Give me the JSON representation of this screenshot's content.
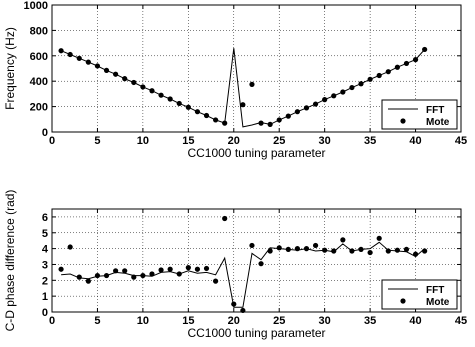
{
  "chart_data": [
    {
      "type": "line",
      "xlabel": "CC1000 tuning parameter",
      "ylabel": "Frequency (Hz)",
      "xlim": [
        0,
        45
      ],
      "ylim": [
        0,
        1000
      ],
      "xticks": [
        0,
        5,
        10,
        15,
        20,
        25,
        30,
        35,
        40,
        45
      ],
      "yticks": [
        0,
        200,
        400,
        600,
        800,
        1000
      ],
      "grid": "dotted",
      "legend_position": "bottom-right",
      "series": [
        {
          "name": "FFT",
          "style": "line",
          "x": [
            1,
            2,
            3,
            4,
            5,
            6,
            7,
            8,
            9,
            10,
            11,
            12,
            13,
            14,
            15,
            16,
            17,
            18,
            19,
            20,
            21,
            22,
            23,
            24,
            25,
            26,
            27,
            28,
            29,
            30,
            31,
            32,
            33,
            34,
            35,
            36,
            37,
            38,
            39,
            40,
            41
          ],
          "y": [
            640,
            610,
            580,
            550,
            520,
            485,
            455,
            420,
            390,
            355,
            325,
            290,
            260,
            225,
            195,
            160,
            130,
            95,
            70,
            660,
            40,
            55,
            75,
            60,
            95,
            125,
            160,
            190,
            220,
            255,
            285,
            315,
            350,
            380,
            415,
            445,
            475,
            510,
            540,
            570,
            650
          ]
        },
        {
          "name": "Mote",
          "style": "markers",
          "x": [
            1,
            2,
            3,
            4,
            5,
            6,
            7,
            8,
            9,
            10,
            11,
            12,
            13,
            14,
            15,
            16,
            17,
            18,
            19,
            21,
            22,
            23,
            24,
            25,
            26,
            27,
            28,
            29,
            30,
            31,
            32,
            33,
            34,
            35,
            36,
            37,
            38,
            39,
            40,
            41
          ],
          "y": [
            640,
            610,
            580,
            550,
            520,
            485,
            455,
            420,
            390,
            355,
            325,
            290,
            260,
            225,
            195,
            160,
            130,
            95,
            70,
            215,
            375,
            70,
            60,
            95,
            125,
            160,
            190,
            220,
            255,
            285,
            315,
            350,
            380,
            415,
            445,
            475,
            510,
            540,
            570,
            650
          ]
        }
      ]
    },
    {
      "type": "line",
      "xlabel": "CC1000 tuning parameter",
      "ylabel": "C-D phase difference (rad)",
      "xlim": [
        0,
        45
      ],
      "ylim": [
        0,
        6.5
      ],
      "xticks": [
        0,
        5,
        10,
        15,
        20,
        25,
        30,
        35,
        40,
        45
      ],
      "yticks": [
        0,
        1,
        2,
        3,
        4,
        5,
        6
      ],
      "grid": "dotted",
      "legend_position": "bottom-right",
      "series": [
        {
          "name": "FFT",
          "style": "line",
          "x": [
            1,
            2,
            3,
            4,
            5,
            6,
            7,
            8,
            9,
            10,
            11,
            12,
            13,
            14,
            15,
            16,
            17,
            18,
            19,
            20,
            21,
            22,
            23,
            24,
            25,
            26,
            27,
            28,
            29,
            30,
            31,
            32,
            33,
            34,
            35,
            36,
            37,
            38,
            39,
            40,
            41
          ],
          "y": [
            2.35,
            2.4,
            2.15,
            2.1,
            2.25,
            2.3,
            2.5,
            2.45,
            2.3,
            2.3,
            2.25,
            2.5,
            2.55,
            2.4,
            2.6,
            2.45,
            2.5,
            2.35,
            3.4,
            0.3,
            0.3,
            3.7,
            3.3,
            4.05,
            4.0,
            3.95,
            3.9,
            4.0,
            3.85,
            3.9,
            3.8,
            4.3,
            3.85,
            3.95,
            4.0,
            4.4,
            3.9,
            3.85,
            3.8,
            3.5,
            4.0
          ]
        },
        {
          "name": "Mote",
          "style": "markers",
          "x": [
            1,
            2,
            3,
            4,
            5,
            6,
            7,
            8,
            9,
            10,
            11,
            12,
            13,
            14,
            15,
            16,
            17,
            18,
            19,
            20,
            21,
            22,
            23,
            24,
            25,
            26,
            27,
            28,
            29,
            30,
            31,
            32,
            33,
            34,
            35,
            36,
            37,
            38,
            39,
            40,
            41
          ],
          "y": [
            2.7,
            4.1,
            2.2,
            1.95,
            2.3,
            2.3,
            2.6,
            2.6,
            2.2,
            2.3,
            2.4,
            2.65,
            2.7,
            2.4,
            2.8,
            2.7,
            2.75,
            1.95,
            5.9,
            0.5,
            0.1,
            4.2,
            3.05,
            3.85,
            4.05,
            3.95,
            4.0,
            4.0,
            4.2,
            3.9,
            3.85,
            4.55,
            3.85,
            3.95,
            3.75,
            4.65,
            3.85,
            3.9,
            3.95,
            3.65,
            3.85
          ]
        }
      ]
    }
  ]
}
